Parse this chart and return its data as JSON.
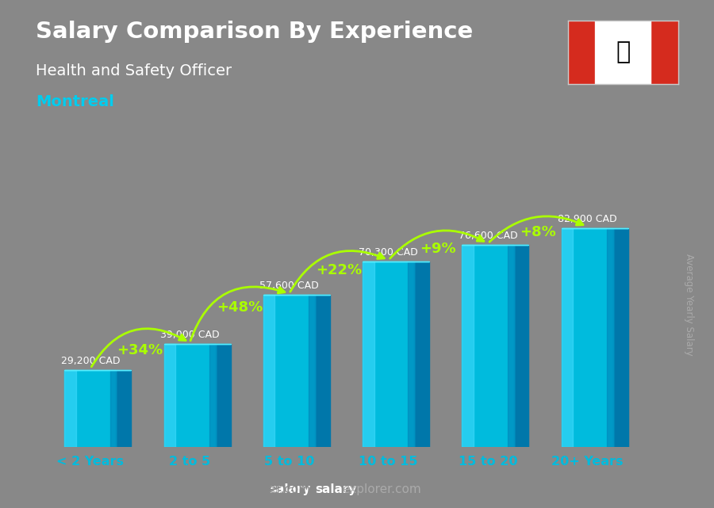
{
  "title": "Salary Comparison By Experience",
  "subtitle": "Health and Safety Officer",
  "city": "Montreal",
  "categories": [
    "< 2 Years",
    "2 to 5",
    "5 to 10",
    "10 to 15",
    "15 to 20",
    "20+ Years"
  ],
  "values": [
    29200,
    39000,
    57600,
    70300,
    76600,
    82900
  ],
  "salary_labels": [
    "29,200 CAD",
    "39,000 CAD",
    "57,600 CAD",
    "70,300 CAD",
    "76,600 CAD",
    "82,900 CAD"
  ],
  "pct_labels": [
    "+34%",
    "+48%",
    "+22%",
    "+9%",
    "+8%"
  ],
  "face_color": "#00bbdd",
  "light_color": "#44ddff",
  "side_color": "#0077aa",
  "top_color": "#55eeff",
  "bg_color": "#888888",
  "title_color": "#ffffff",
  "subtitle_color": "#ffffff",
  "city_color": "#00ccee",
  "salary_label_color": "#ffffff",
  "pct_color": "#aaff00",
  "xlabel_color": "#00bbdd",
  "ylim": [
    0,
    100000
  ],
  "bar_width": 0.52,
  "depth": 0.15,
  "footer_salary_color": "#ffffff",
  "footer_explorer_color": "#aaaaaa",
  "right_label_color": "#aaaaaa",
  "footer": "salaryexplorer.com"
}
